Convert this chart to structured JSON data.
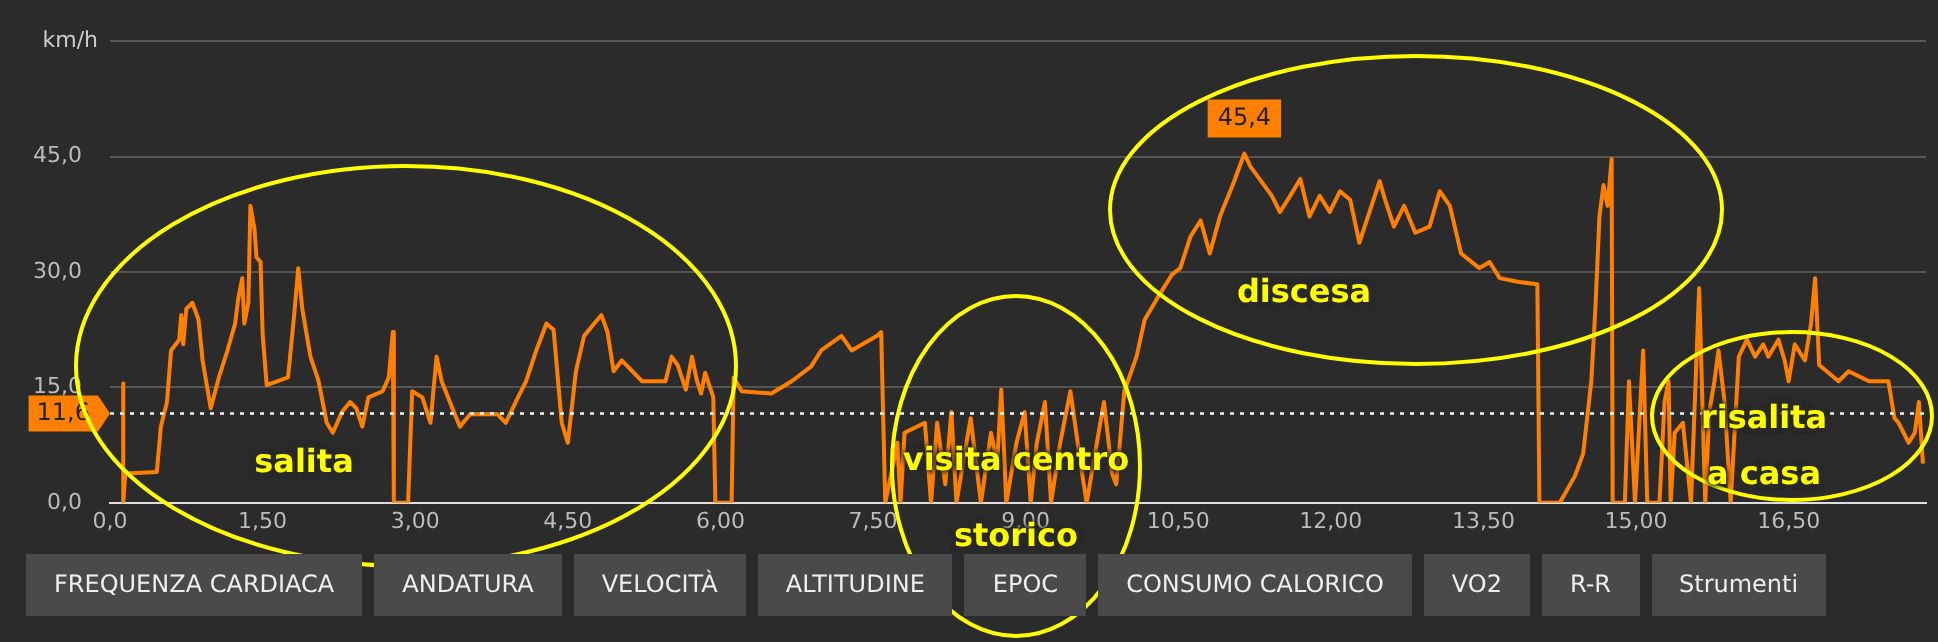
{
  "chart_data": {
    "type": "line",
    "ylabel": "km/h",
    "xlim": [
      0,
      17.85
    ],
    "xticks": [
      {
        "value": 0,
        "label": "0,0"
      },
      {
        "value": 1.5,
        "label": "1,50"
      },
      {
        "value": 3,
        "label": "3,00"
      },
      {
        "value": 4.5,
        "label": "4,50"
      },
      {
        "value": 6,
        "label": "6,00"
      },
      {
        "value": 7.5,
        "label": "7,50"
      },
      {
        "value": 9,
        "label": "9,00"
      },
      {
        "value": 10.5,
        "label": "10,50"
      },
      {
        "value": 12,
        "label": "12,00"
      },
      {
        "value": 13.5,
        "label": "13,50"
      },
      {
        "value": 15,
        "label": "15,00"
      },
      {
        "value": 16.5,
        "label": "16,50"
      }
    ],
    "ylim": [
      0,
      60
    ],
    "yticks": [
      {
        "value": 0,
        "label": "0,0"
      },
      {
        "value": 15,
        "label": "15,0"
      },
      {
        "value": 30,
        "label": "30,0"
      },
      {
        "value": 45,
        "label": "45,0"
      },
      {
        "value": 60,
        "label": null
      }
    ],
    "grid": "y",
    "legend": false,
    "marker": "none",
    "line_style": "solid",
    "ref_lines": [
      {
        "axis": "y",
        "value": 11.6,
        "label": "11,6",
        "color": "#ffffff",
        "line_style": "dotted"
      }
    ],
    "annotations": [
      "salita",
      "visita centro storico",
      "discesa",
      "risalita a casa",
      "FREQUENZA CARDIACA",
      "ANDATURA",
      "VELOCITÀ",
      "ALTITUDINE",
      "EPOC",
      "CONSUMO CALORICO",
      "VO2",
      "R-R",
      "Strumenti"
    ],
    "series": [
      {
        "color": "#ff8000",
        "x": [
          0.13,
          0.13,
          0.15,
          0.46,
          0.5,
          0.56,
          0.6,
          0.68,
          0.7,
          0.72,
          0.75,
          0.81,
          0.87,
          0.91,
          0.99,
          1.07,
          1.15,
          1.23,
          1.26,
          1.3,
          1.32,
          1.36,
          1.38,
          1.42,
          1.44,
          1.48,
          1.5,
          1.54,
          1.75,
          1.81,
          1.85,
          1.89,
          1.97,
          2.05,
          2.13,
          2.19,
          2.28,
          2.36,
          2.42,
          2.48,
          2.54,
          2.68,
          2.74,
          2.78,
          2.79,
          2.93,
          2.97,
          3.07,
          3.15,
          3.21,
          3.26,
          3.38,
          3.44,
          3.54,
          3.81,
          3.89,
          4.01,
          4.09,
          4.19,
          4.29,
          4.36,
          4.44,
          4.5,
          4.58,
          4.66,
          4.76,
          4.83,
          4.89,
          4.95,
          5.03,
          5.23,
          5.46,
          5.52,
          5.58,
          5.66,
          5.72,
          5.77,
          5.81,
          5.85,
          5.93,
          5.95,
          6.11,
          6.13,
          6.21,
          6.5,
          6.7,
          6.89,
          6.99,
          7.19,
          7.29,
          7.54,
          7.58,
          7.62,
          7.68,
          7.74,
          7.77,
          7.81,
          8.01,
          8.07,
          8.13,
          8.21,
          8.27,
          8.32,
          8.4,
          8.46,
          8.56,
          8.66,
          8.72,
          8.76,
          8.81,
          8.91,
          8.99,
          9.05,
          9.11,
          9.19,
          9.25,
          9.34,
          9.44,
          9.54,
          9.6,
          9.7,
          9.77,
          9.85,
          9.89,
          9.97,
          10.09,
          10.17,
          10.29,
          10.44,
          10.52,
          10.62,
          10.72,
          10.81,
          10.91,
          11.05,
          11.15,
          11.21,
          11.42,
          11.5,
          11.6,
          11.7,
          11.79,
          11.89,
          11.99,
          12.09,
          12.19,
          12.28,
          12.38,
          12.48,
          12.54,
          12.62,
          12.72,
          12.83,
          12.97,
          13.07,
          13.17,
          13.28,
          13.46,
          13.56,
          13.66,
          13.85,
          14.03,
          14.05,
          14.25,
          14.4,
          14.48,
          14.56,
          14.6,
          14.64,
          14.68,
          14.72,
          14.76,
          14.77,
          14.89,
          14.93,
          14.99,
          15.07,
          15.11,
          15.23,
          15.28,
          15.32,
          15.34,
          15.38,
          15.46,
          15.54,
          15.62,
          15.68,
          15.72,
          15.77,
          15.81,
          15.87,
          15.93,
          16.01,
          16.09,
          16.17,
          16.25,
          16.3,
          16.4,
          16.46,
          16.5,
          16.56,
          16.66,
          16.72,
          16.76,
          16.8,
          16.99,
          17.09,
          17.29,
          17.48,
          17.54,
          17.58,
          17.68,
          17.74,
          17.78,
          17.82
        ],
        "values": [
          15.5,
          0,
          3.8,
          4.0,
          9.9,
          13.1,
          19.8,
          21.2,
          24.4,
          20.6,
          25.2,
          26.0,
          23.8,
          18.5,
          12.3,
          16.3,
          19.6,
          23.3,
          26.5,
          29.2,
          23.3,
          26.0,
          38.6,
          35.6,
          31.9,
          31.3,
          22.0,
          15.3,
          16.3,
          24.4,
          30.5,
          25.2,
          19.0,
          15.8,
          10.4,
          9.1,
          11.8,
          13.1,
          12.3,
          9.9,
          13.7,
          14.5,
          16.3,
          22.2,
          0,
          0,
          14.5,
          13.7,
          10.4,
          19.0,
          15.8,
          11.8,
          9.9,
          11.5,
          11.5,
          10.4,
          13.7,
          15.8,
          19.8,
          23.3,
          22.5,
          10.4,
          7.8,
          17.1,
          21.7,
          23.3,
          24.4,
          22.2,
          17.1,
          18.5,
          15.8,
          15.8,
          19.0,
          17.9,
          14.7,
          19.0,
          15.8,
          14.2,
          16.9,
          13.7,
          0,
          0,
          16.3,
          14.5,
          14.2,
          15.8,
          17.7,
          19.8,
          21.7,
          19.8,
          21.7,
          22.2,
          0,
          3.8,
          7.8,
          0,
          9.1,
          10.4,
          0,
          10.4,
          2.4,
          11.8,
          0,
          6.4,
          11.0,
          0,
          9.1,
          5.1,
          14.7,
          0,
          7.8,
          11.8,
          0,
          7.8,
          13.1,
          0,
          7.8,
          14.5,
          5.1,
          0,
          7.8,
          13.1,
          3.8,
          2.4,
          14.5,
          19.0,
          23.8,
          26.5,
          29.7,
          30.5,
          34.6,
          36.7,
          32.4,
          37.2,
          41.8,
          45.4,
          43.7,
          39.9,
          37.8,
          39.9,
          42.1,
          37.2,
          39.9,
          37.8,
          40.5,
          39.4,
          33.8,
          37.8,
          41.8,
          39.1,
          35.9,
          38.6,
          35.1,
          35.9,
          40.5,
          38.6,
          32.4,
          30.5,
          31.3,
          29.2,
          28.7,
          28.4,
          0,
          0,
          3.5,
          6.4,
          15.8,
          25.2,
          37.2,
          41.3,
          38.6,
          44.7,
          0,
          0,
          15.8,
          0,
          19.8,
          0,
          0,
          13.1,
          15.8,
          0,
          9.1,
          10.4,
          0,
          27.9,
          0,
          11.8,
          15.8,
          19.8,
          13.1,
          0,
          19.0,
          21.2,
          19.0,
          20.6,
          19.0,
          21.2,
          18.5,
          15.8,
          20.6,
          18.5,
          23.3,
          29.2,
          17.9,
          15.8,
          17.1,
          15.8,
          15.8,
          11.0,
          10.4,
          7.8,
          9.1,
          13.1,
          5.1
        ],
        "value_labels": [
          null,
          null,
          null,
          null,
          null,
          null,
          null,
          null,
          null,
          null,
          null,
          null,
          null,
          null,
          null,
          null,
          null,
          null,
          null,
          null,
          null,
          null,
          null,
          null,
          null,
          null,
          null,
          null,
          null,
          null,
          null,
          null,
          null,
          null,
          null,
          null,
          null,
          null,
          null,
          null,
          null,
          null,
          null,
          null,
          null,
          null,
          null,
          null,
          null,
          null,
          null,
          null,
          null,
          null,
          null,
          null,
          null,
          null,
          null,
          null,
          null,
          null,
          null,
          null,
          null,
          null,
          null,
          null,
          null,
          null,
          null,
          null,
          null,
          null,
          null,
          null,
          null,
          null,
          null,
          null,
          null,
          null,
          null,
          null,
          null,
          null,
          null,
          null,
          null,
          null,
          null,
          null,
          null,
          null,
          null,
          null,
          null,
          null,
          null,
          null,
          null,
          null,
          null,
          null,
          null,
          null,
          null,
          null,
          null,
          null,
          null,
          null,
          null,
          null,
          null,
          null,
          null,
          null,
          null,
          null,
          null,
          null,
          null,
          null,
          null,
          null,
          null,
          null,
          null,
          null,
          null,
          null,
          null,
          null,
          null,
          "45,4",
          null,
          null,
          null,
          null,
          null,
          null,
          null,
          null,
          null,
          null,
          null,
          null,
          null,
          null,
          null,
          null,
          null,
          null,
          null,
          null,
          null,
          null,
          null,
          null,
          null,
          null,
          null,
          null,
          null,
          null,
          null,
          null,
          null,
          null,
          null,
          null,
          null,
          null,
          null,
          null,
          null,
          null,
          null,
          null,
          null,
          null,
          null,
          null,
          null,
          null,
          null,
          null,
          null,
          null,
          null,
          null,
          null,
          null,
          null,
          null,
          null,
          null,
          null,
          null,
          null,
          null,
          null,
          null,
          null,
          null,
          null,
          null,
          null,
          null,
          null,
          null,
          null,
          null,
          null
        ]
      }
    ]
  }
}
